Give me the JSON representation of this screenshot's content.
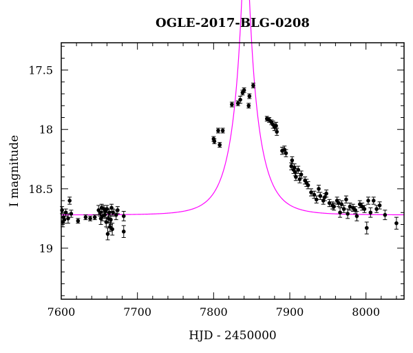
{
  "chart_data": {
    "type": "scatter",
    "title": "OGLE-2017-BLG-0208",
    "xlabel": "HJD - 2450000",
    "ylabel": "I magnitude",
    "xlim": [
      7600,
      8050
    ],
    "ylim": [
      19.43,
      17.27
    ],
    "y_inverted": true,
    "grid": false,
    "x_ticks": [
      {
        "value": 7600,
        "label": "7600"
      },
      {
        "value": 7700,
        "label": "7700"
      },
      {
        "value": 7800,
        "label": "7800"
      },
      {
        "value": 7900,
        "label": "7900"
      },
      {
        "value": 8000,
        "label": "8000"
      }
    ],
    "y_ticks": [
      {
        "value": 17.5,
        "label": "17.5"
      },
      {
        "value": 18,
        "label": "18"
      },
      {
        "value": 18.5,
        "label": "18.5"
      },
      {
        "value": 19,
        "label": "19"
      }
    ],
    "colors": {
      "data": "#000000",
      "model": "#ff00ff"
    },
    "series": [
      {
        "kind": "points-with-errorbars",
        "points": [
          [
            7601,
            18.68,
            0.03
          ],
          [
            7602,
            18.78,
            0.04
          ],
          [
            7603,
            18.74,
            0.03
          ],
          [
            7604,
            18.76,
            0.03
          ],
          [
            7606,
            18.7,
            0.03
          ],
          [
            7609,
            18.75,
            0.04
          ],
          [
            7611,
            18.6,
            0.03
          ],
          [
            7613,
            18.71,
            0.03
          ],
          [
            7622,
            18.77,
            0.02
          ],
          [
            7632,
            18.74,
            0.02
          ],
          [
            7638,
            18.75,
            0.02
          ],
          [
            7644,
            18.74,
            0.02
          ],
          [
            7649,
            18.68,
            0.04
          ],
          [
            7651,
            18.7,
            0.03
          ],
          [
            7652,
            18.75,
            0.05
          ],
          [
            7653,
            18.66,
            0.03
          ],
          [
            7654,
            18.73,
            0.04
          ],
          [
            7656,
            18.67,
            0.03
          ],
          [
            7657,
            18.72,
            0.03
          ],
          [
            7658,
            18.69,
            0.03
          ],
          [
            7659,
            18.78,
            0.04
          ],
          [
            7660,
            18.67,
            0.03
          ],
          [
            7661,
            18.88,
            0.05
          ],
          [
            7662,
            18.75,
            0.04
          ],
          [
            7663,
            18.7,
            0.03
          ],
          [
            7664,
            18.82,
            0.04
          ],
          [
            7665,
            18.76,
            0.04
          ],
          [
            7666,
            18.66,
            0.03
          ],
          [
            7667,
            18.84,
            0.05
          ],
          [
            7668,
            18.7,
            0.03
          ],
          [
            7672,
            18.72,
            0.04
          ],
          [
            7674,
            18.68,
            0.03
          ],
          [
            7682,
            18.86,
            0.05
          ],
          [
            7682,
            18.73,
            0.04
          ],
          [
            7800,
            18.08,
            0.02
          ],
          [
            7801,
            18.1,
            0.02
          ],
          [
            7806,
            18.01,
            0.02
          ],
          [
            7808,
            18.13,
            0.02
          ],
          [
            7812,
            18.01,
            0.02
          ],
          [
            7824,
            17.79,
            0.02
          ],
          [
            7832,
            17.78,
            0.02
          ],
          [
            7835,
            17.75,
            0.03
          ],
          [
            7838,
            17.69,
            0.02
          ],
          [
            7840,
            17.67,
            0.02
          ],
          [
            7846,
            17.8,
            0.02
          ],
          [
            7847,
            17.72,
            0.02
          ],
          [
            7852,
            17.63,
            0.02
          ],
          [
            7870,
            17.91,
            0.02
          ],
          [
            7873,
            17.92,
            0.02
          ],
          [
            7876,
            17.94,
            0.02
          ],
          [
            7878,
            17.96,
            0.03
          ],
          [
            7880,
            17.98,
            0.03
          ],
          [
            7882,
            17.97,
            0.03
          ],
          [
            7883,
            18.02,
            0.03
          ],
          [
            7890,
            18.18,
            0.03
          ],
          [
            7893,
            18.17,
            0.03
          ],
          [
            7895,
            18.2,
            0.03
          ],
          [
            7902,
            18.31,
            0.03
          ],
          [
            7903,
            18.26,
            0.03
          ],
          [
            7905,
            18.34,
            0.03
          ],
          [
            7906,
            18.32,
            0.03
          ],
          [
            7907,
            18.36,
            0.03
          ],
          [
            7908,
            18.4,
            0.03
          ],
          [
            7911,
            18.34,
            0.03
          ],
          [
            7913,
            18.42,
            0.03
          ],
          [
            7915,
            18.38,
            0.03
          ],
          [
            7920,
            18.43,
            0.03
          ],
          [
            7922,
            18.45,
            0.03
          ],
          [
            7924,
            18.47,
            0.03
          ],
          [
            7928,
            18.53,
            0.03
          ],
          [
            7932,
            18.55,
            0.03
          ],
          [
            7935,
            18.59,
            0.03
          ],
          [
            7938,
            18.5,
            0.03
          ],
          [
            7940,
            18.56,
            0.03
          ],
          [
            7944,
            18.6,
            0.03
          ],
          [
            7946,
            18.57,
            0.03
          ],
          [
            7948,
            18.54,
            0.03
          ],
          [
            7952,
            18.62,
            0.03
          ],
          [
            7956,
            18.64,
            0.03
          ],
          [
            7958,
            18.65,
            0.03
          ],
          [
            7962,
            18.6,
            0.03
          ],
          [
            7964,
            18.62,
            0.03
          ],
          [
            7966,
            18.7,
            0.04
          ],
          [
            7968,
            18.63,
            0.03
          ],
          [
            7971,
            18.67,
            0.03
          ],
          [
            7974,
            18.59,
            0.03
          ],
          [
            7976,
            18.71,
            0.04
          ],
          [
            7979,
            18.65,
            0.03
          ],
          [
            7983,
            18.66,
            0.03
          ],
          [
            7986,
            18.68,
            0.03
          ],
          [
            7988,
            18.73,
            0.04
          ],
          [
            7992,
            18.63,
            0.03
          ],
          [
            7995,
            18.65,
            0.03
          ],
          [
            7998,
            18.67,
            0.03
          ],
          [
            8001,
            18.83,
            0.05
          ],
          [
            8003,
            18.6,
            0.03
          ],
          [
            8006,
            18.7,
            0.04
          ],
          [
            8010,
            18.6,
            0.03
          ],
          [
            8014,
            18.67,
            0.03
          ],
          [
            8018,
            18.64,
            0.03
          ],
          [
            8025,
            18.72,
            0.04
          ],
          [
            8040,
            18.79,
            0.05
          ]
        ]
      },
      {
        "kind": "model-curve",
        "model": {
          "t0": 7842,
          "u0": 0.105,
          "tE": 32,
          "base": 18.72
        }
      }
    ]
  }
}
